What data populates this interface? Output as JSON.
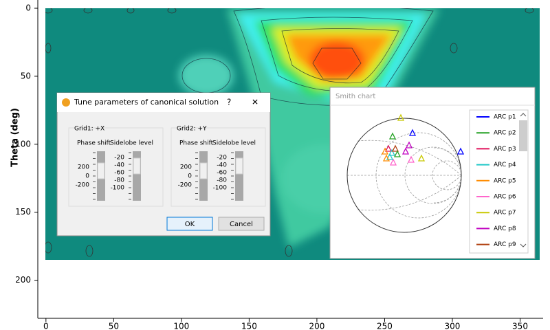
{
  "chart_data": {
    "type": "contour",
    "ylabel": "Theta (deg)",
    "xlim": [
      -6,
      367
    ],
    "ylim": [
      0,
      228
    ],
    "y_inverted": true,
    "xticks": [
      0,
      50,
      100,
      150,
      200,
      250,
      300,
      350
    ],
    "yticks": [
      0,
      50,
      100,
      150,
      200
    ]
  },
  "dialog": {
    "title": "Tune parameters of canonical solution",
    "help": "?",
    "close": "✕",
    "groups": [
      {
        "title": "Grid1: +X",
        "phase_label": "Phase shift",
        "sidelobe_label": "Sidelobe level",
        "phase_scale": [
          200,
          0,
          -200
        ],
        "sidelobe_scale": [
          -20,
          -40,
          -60,
          -80,
          -100
        ]
      },
      {
        "title": "Grid2: +Y",
        "phase_label": "Phase shift",
        "sidelobe_label": "Sidelobe level",
        "phase_scale": [
          200,
          0,
          -200
        ],
        "sidelobe_scale": [
          -20,
          -40,
          -60,
          -80,
          -100
        ]
      }
    ],
    "ok": "OK",
    "cancel": "Cancel"
  },
  "smith_window": {
    "title": "Smith chart",
    "legend": [
      {
        "name": "ARC p1",
        "color": "#0000ff"
      },
      {
        "name": "ARC p2",
        "color": "#22a022"
      },
      {
        "name": "ARC p3",
        "color": "#e0105a"
      },
      {
        "name": "ARC p4",
        "color": "#20c8c8"
      },
      {
        "name": "ARC p5",
        "color": "#ff8c00"
      },
      {
        "name": "ARC p6",
        "color": "#ff66cc"
      },
      {
        "name": "ARC p7",
        "color": "#c8c800"
      },
      {
        "name": "ARC p8",
        "color": "#c000c0"
      },
      {
        "name": "ARC p9",
        "color": "#b04010"
      }
    ]
  }
}
